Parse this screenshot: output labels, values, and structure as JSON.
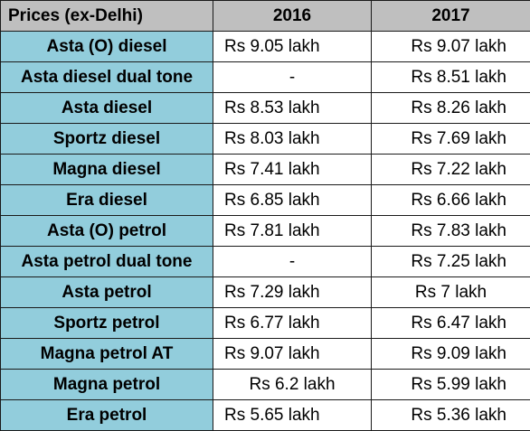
{
  "table": {
    "headers": [
      "Prices (ex-Delhi)",
      "2016",
      "2017"
    ],
    "rows": [
      {
        "model": "Asta (O) diesel",
        "y2016": "Rs 9.05 lakh",
        "y2017": "Rs 9.07 lakh"
      },
      {
        "model": "Asta diesel dual tone",
        "y2016": "-",
        "y2017": "Rs 8.51 lakh"
      },
      {
        "model": "Asta diesel",
        "y2016": "Rs 8.53 lakh",
        "y2017": "Rs 8.26 lakh"
      },
      {
        "model": "Sportz diesel",
        "y2016": "Rs 8.03 lakh",
        "y2017": "Rs 7.69 lakh"
      },
      {
        "model": "Magna diesel",
        "y2016": "Rs 7.41 lakh",
        "y2017": "Rs 7.22 lakh"
      },
      {
        "model": "Era diesel",
        "y2016": "Rs 6.85 lakh",
        "y2017": "Rs 6.66 lakh"
      },
      {
        "model": "Asta (O) petrol",
        "y2016": "Rs 7.81 lakh",
        "y2017": "Rs 7.83 lakh"
      },
      {
        "model": "Asta petrol dual tone",
        "y2016": "-",
        "y2017": "Rs 7.25 lakh"
      },
      {
        "model": "Asta petrol",
        "y2016": "Rs 7.29 lakh",
        "y2017": "Rs 7 lakh"
      },
      {
        "model": "Sportz petrol",
        "y2016": "Rs 6.77 lakh",
        "y2017": "Rs 6.47 lakh"
      },
      {
        "model": "Magna petrol AT",
        "y2016": "Rs 9.07 lakh",
        "y2017": "Rs 9.09 lakh"
      },
      {
        "model": "Magna petrol",
        "y2016": "Rs 6.2 lakh",
        "y2017": "Rs 5.99 lakh"
      },
      {
        "model": "Era petrol",
        "y2016": "Rs 5.65 lakh",
        "y2017": "Rs 5.36 lakh"
      }
    ]
  },
  "colors": {
    "header_background": "#bfbfbf",
    "model_column_background": "#92cddc",
    "price_cell_background": "#ffffff",
    "border": "#1a1a1a"
  }
}
